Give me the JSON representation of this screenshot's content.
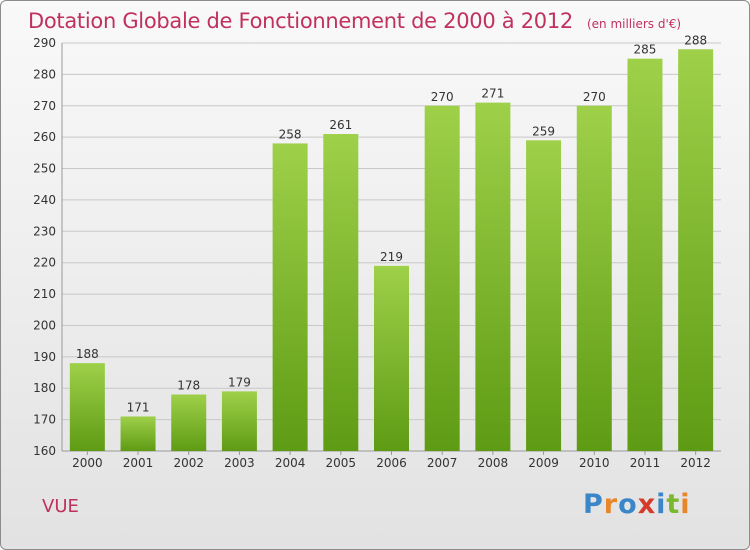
{
  "title": "Dotation Globale de Fonctionnement de 2000 à 2012",
  "subtitle": "(en milliers d'€)",
  "place": "VUE",
  "logo": {
    "letters": [
      "P",
      "r",
      "o",
      "x",
      "i",
      "t",
      "i"
    ],
    "colors": [
      "#3a86c8",
      "#e8862a",
      "#3a86c8",
      "#d63a2a",
      "#3a86c8",
      "#7ab82e",
      "#e8862a"
    ]
  },
  "colors": {
    "bar_light": "#9fd04a",
    "bar_dark": "#5e9b14",
    "title": "#c0315e",
    "grid": "#c8c8c8"
  },
  "chart_data": {
    "type": "bar",
    "title": "Dotation Globale de Fonctionnement de 2000 à 2012",
    "subtitle": "(en milliers d'€)",
    "categories": [
      "2000",
      "2001",
      "2002",
      "2003",
      "2004",
      "2005",
      "2006",
      "2007",
      "2008",
      "2009",
      "2010",
      "2011",
      "2012"
    ],
    "values": [
      188,
      171,
      178,
      179,
      258,
      261,
      219,
      270,
      271,
      259,
      270,
      285,
      288
    ],
    "ylim": [
      160,
      290
    ],
    "yticks": [
      160,
      170,
      180,
      190,
      200,
      210,
      220,
      230,
      240,
      250,
      260,
      270,
      280,
      290
    ],
    "grid": true,
    "xlabel": "",
    "ylabel": ""
  }
}
